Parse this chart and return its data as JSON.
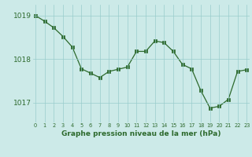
{
  "hours": [
    0,
    1,
    2,
    3,
    4,
    5,
    6,
    7,
    8,
    9,
    10,
    11,
    12,
    13,
    14,
    15,
    16,
    17,
    18,
    19,
    20,
    21,
    22,
    23
  ],
  "pressure": [
    1019.0,
    1018.87,
    1018.72,
    1018.52,
    1018.28,
    1017.78,
    1017.68,
    1017.58,
    1017.72,
    1017.77,
    1017.82,
    1018.18,
    1018.18,
    1018.42,
    1018.38,
    1018.18,
    1017.88,
    1017.78,
    1017.28,
    1016.88,
    1016.92,
    1017.08,
    1017.72,
    1017.76
  ],
  "line_color": "#2d6a2d",
  "marker_color": "#2d6a2d",
  "bg_color": "#cceae8",
  "grid_color": "#99cccc",
  "xlabel": "Graphe pression niveau de la mer (hPa)",
  "xlabel_color": "#2d6a2d",
  "tick_color": "#2d6a2d",
  "ylim": [
    1016.55,
    1019.25
  ],
  "yticks": [
    1017.0,
    1018.0,
    1019.0
  ],
  "xlim": [
    -0.3,
    23.3
  ],
  "xtick_labels": [
    "0",
    "1",
    "2",
    "3",
    "4",
    "5",
    "6",
    "7",
    "8",
    "9",
    "10",
    "11",
    "12",
    "13",
    "14",
    "15",
    "16",
    "17",
    "18",
    "19",
    "20",
    "21",
    "22",
    "23"
  ]
}
